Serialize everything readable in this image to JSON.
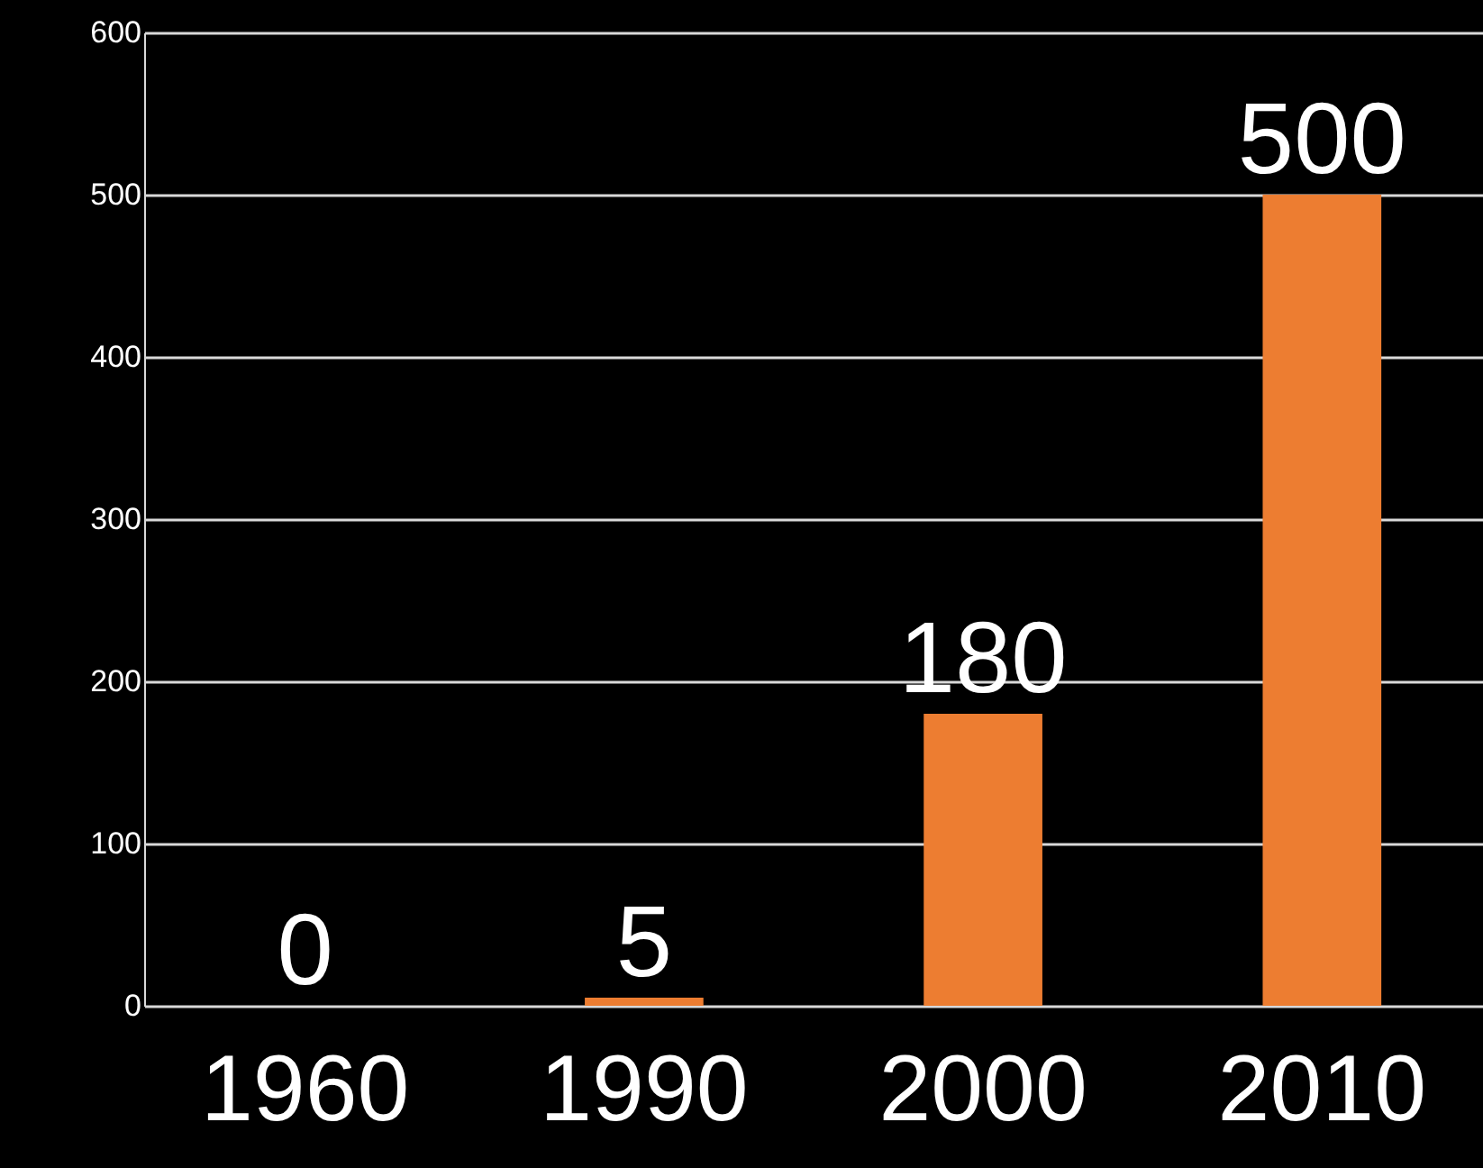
{
  "chart_data": {
    "type": "bar",
    "categories": [
      "1960",
      "1990",
      "2000",
      "2010"
    ],
    "values": [
      0,
      5,
      180,
      500
    ],
    "color": "#ed7d31",
    "ylim": [
      0,
      600
    ],
    "yticks": [
      0,
      100,
      200,
      300,
      400,
      500,
      600
    ],
    "grid": true,
    "data_labels": true
  }
}
